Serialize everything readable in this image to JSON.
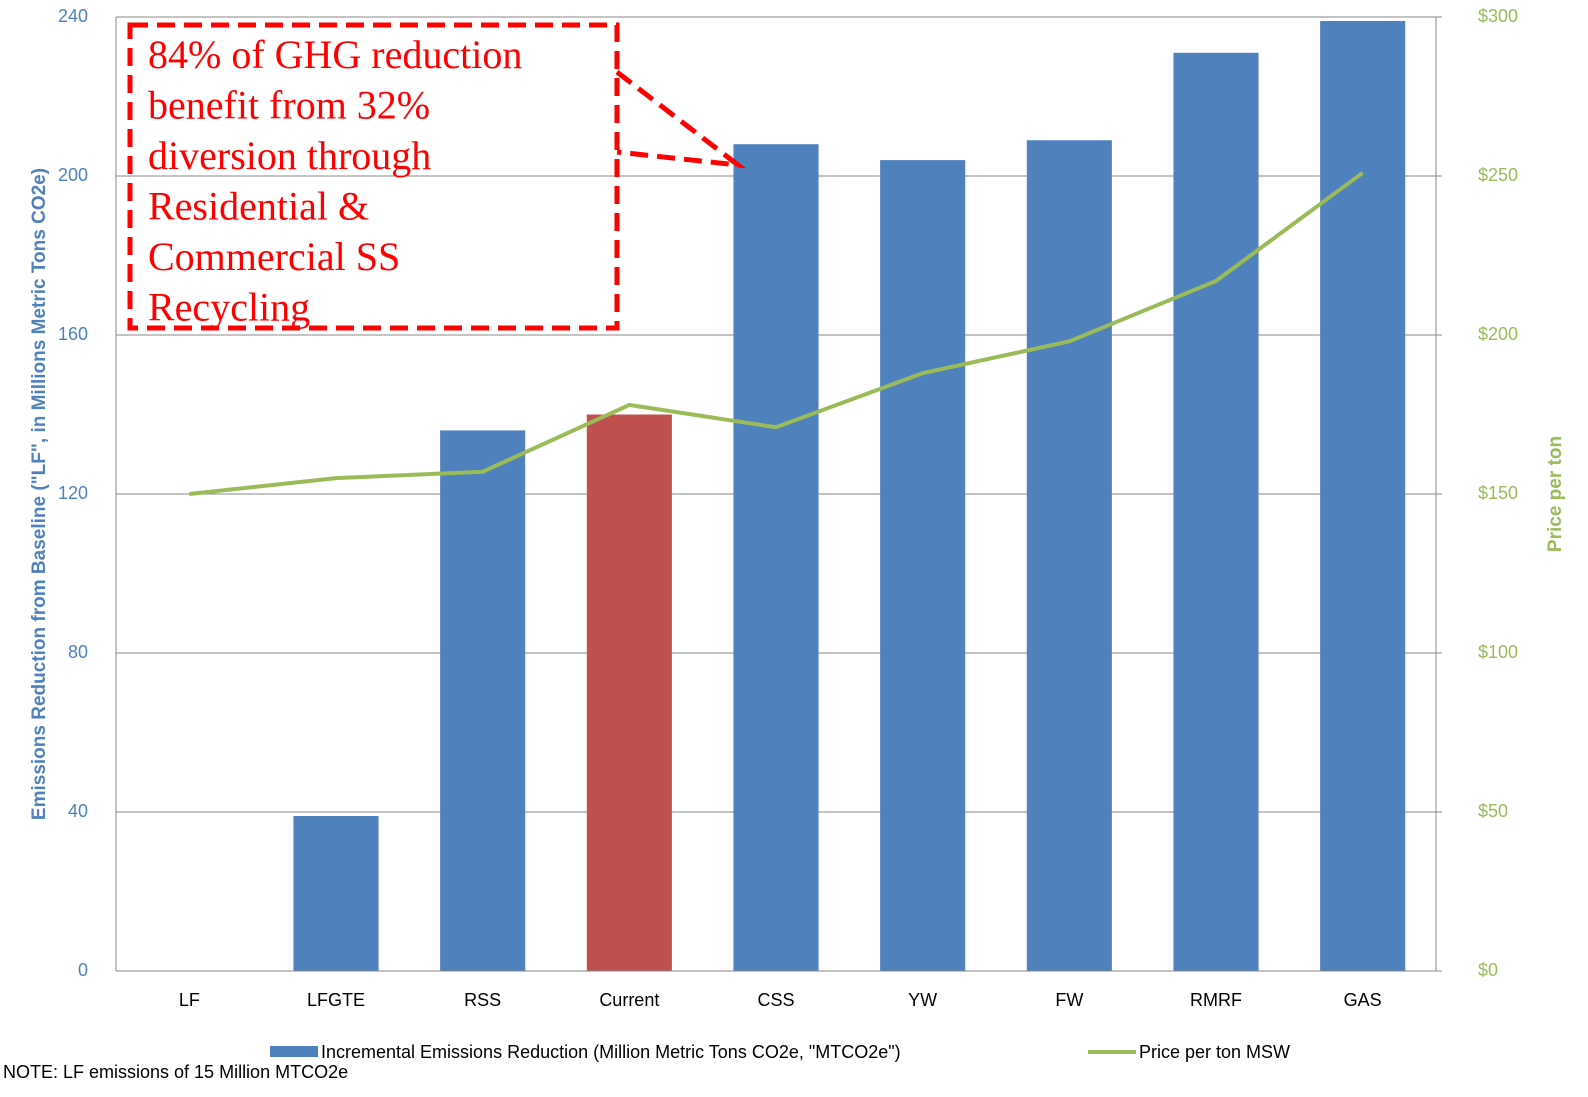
{
  "chart_data": {
    "type": "bar",
    "categories": [
      "LF",
      "LFGTE",
      "RSS",
      "Current",
      "CSS",
      "YW",
      "FW",
      "RMRF",
      "GAS"
    ],
    "series": [
      {
        "name": "Incremental Emissions Reduction (Million Metric Tons CO2e, \"MTCO2e\")",
        "type": "bar",
        "color": "#4f81bd",
        "colors": [
          "#4f81bd",
          "#4f81bd",
          "#4f81bd",
          "#c0504d",
          "#4f81bd",
          "#4f81bd",
          "#4f81bd",
          "#4f81bd",
          "#4f81bd"
        ],
        "values": [
          0,
          39,
          136,
          140,
          208,
          204,
          209,
          231,
          239
        ]
      },
      {
        "name": "Price per ton MSW",
        "type": "line",
        "axis": "y2",
        "color": "#9bbb59",
        "values": [
          150,
          155,
          157,
          178,
          171,
          188,
          198,
          217,
          251
        ]
      }
    ],
    "y_label": "Emissions Reduction from Baseline (\"LF\", in Millions Metric Tons CO2e)",
    "y2_label": "Price per ton",
    "ylim": [
      0,
      240
    ],
    "yticks": [
      0,
      40,
      80,
      120,
      160,
      200,
      240
    ],
    "y2lim": [
      0,
      300
    ],
    "y2ticks": [
      {
        "value": 0,
        "label": "$0"
      },
      {
        "value": 50,
        "label": "$50"
      },
      {
        "value": 100,
        "label": "$100"
      },
      {
        "value": 150,
        "label": "$150"
      },
      {
        "value": 200,
        "label": "$200"
      },
      {
        "value": 250,
        "label": "$250"
      },
      {
        "value": 300,
        "label": "$300"
      }
    ],
    "grid": true,
    "legend": "bottom",
    "annotation": [
      "84% of GHG reduction",
      "benefit from 32%",
      "diversion through",
      "Residential &",
      "Commercial SS",
      "Recycling"
    ],
    "note": "NOTE: LF emissions of 15 Million MTCO2e"
  }
}
